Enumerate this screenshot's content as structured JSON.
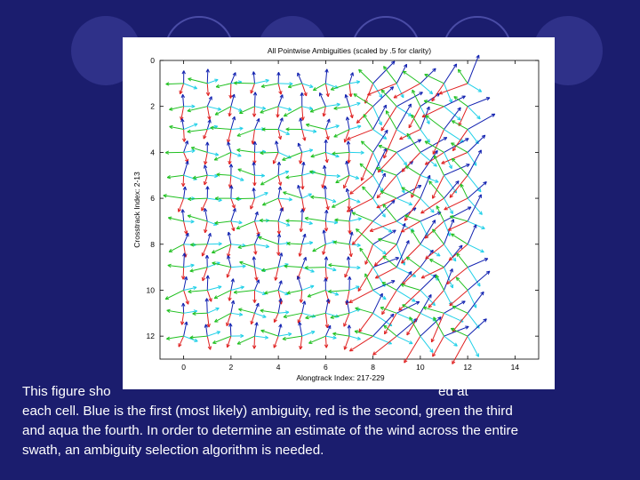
{
  "caption": {
    "part1": "This figure sho",
    "part2": "ed at",
    "line2": "each cell. Blue is the first (most likely) ambiguity, red is the second, green the third",
    "line3": "and aqua the fourth. In order to determine an estimate of the wind across the entire",
    "line4": "swath, an ambiguity selection algorithm is needed."
  },
  "colors": {
    "background": "#1b1d6e",
    "first_ambiguity": "#1020b0",
    "second_ambiguity": "#e02020",
    "third_ambiguity": "#20c020",
    "fourth_ambiguity": "#20d0e8"
  },
  "chart_data": {
    "type": "vector-field",
    "title": "All Pointwise Ambiguities (scaled by .5 for clarity)",
    "xlabel": "Alongtrack Index: 217-229",
    "ylabel": "Crosstrack Index: 2-13",
    "xlim": [
      -1,
      15
    ],
    "ylim": [
      13,
      0
    ],
    "y_inverted": true,
    "xticks": [
      "0",
      "2",
      "4",
      "6",
      "8",
      "10",
      "12",
      "14"
    ],
    "yticks": [
      "0",
      "2",
      "4",
      "6",
      "8",
      "10",
      "12"
    ],
    "grid": false,
    "columns": [
      0,
      1,
      2,
      3,
      4,
      5,
      6,
      7,
      8,
      9,
      10,
      11,
      12
    ],
    "rows": [
      1,
      2,
      3,
      4,
      5,
      6,
      7,
      8,
      9,
      10,
      11,
      12
    ],
    "series": [
      {
        "name": "Blue is the first (most likely) ambiguity",
        "color": "#1020b0",
        "angle_offset": 0
      },
      {
        "name": "red is the second",
        "color": "#e02020",
        "angle_offset": 180
      },
      {
        "name": "green the third",
        "color": "#20c020",
        "angle_offset": 95
      },
      {
        "name": "aqua the fourth",
        "color": "#20d0e8",
        "angle_offset": 270
      }
    ],
    "region_boundary_column": 7.5,
    "left_region_direction_deg": 90,
    "right_region_direction_deg": 45
  }
}
